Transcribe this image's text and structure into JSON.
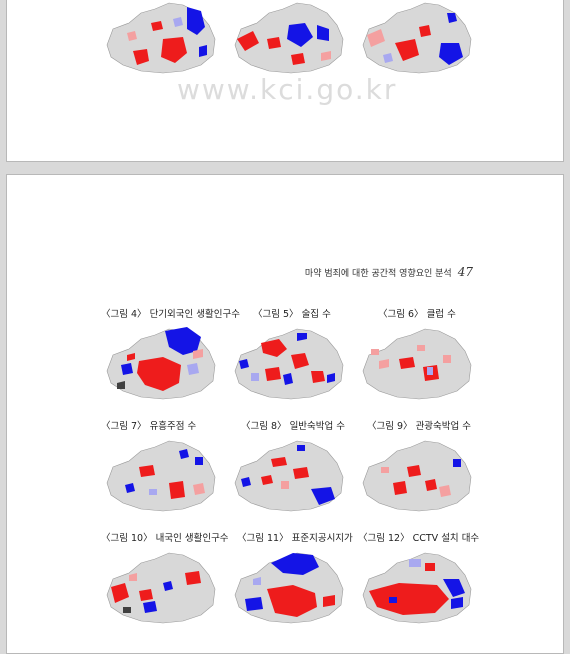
{
  "watermark": "www.kci.go.kr",
  "header": {
    "title": "마약 범죄에 대한 공간적 영향요인 분석",
    "page_number": "47"
  },
  "figures": [
    {
      "caption": "〈그림 4〉 단기외국인 생활인구수"
    },
    {
      "caption": "〈그림 5〉 술집 수"
    },
    {
      "caption": "〈그림 6〉 클럽 수"
    },
    {
      "caption": "〈그림 7〉 유흥주점 수"
    },
    {
      "caption": "〈그림 8〉 일반숙박업 수"
    },
    {
      "caption": "〈그림 9〉 관광숙박업 수"
    },
    {
      "caption": "〈그림 10〉 내국인 생활인구수"
    },
    {
      "caption": "〈그림 11〉 표준지공시지가"
    },
    {
      "caption": "〈그림 12〉 CCTV 설치 대수"
    }
  ],
  "colors": {
    "high": "#ee1c1c",
    "low": "#1414e6",
    "mid_high": "#f4a0a0",
    "mid_low": "#a8a8f0",
    "base": "#d8d8d8"
  }
}
